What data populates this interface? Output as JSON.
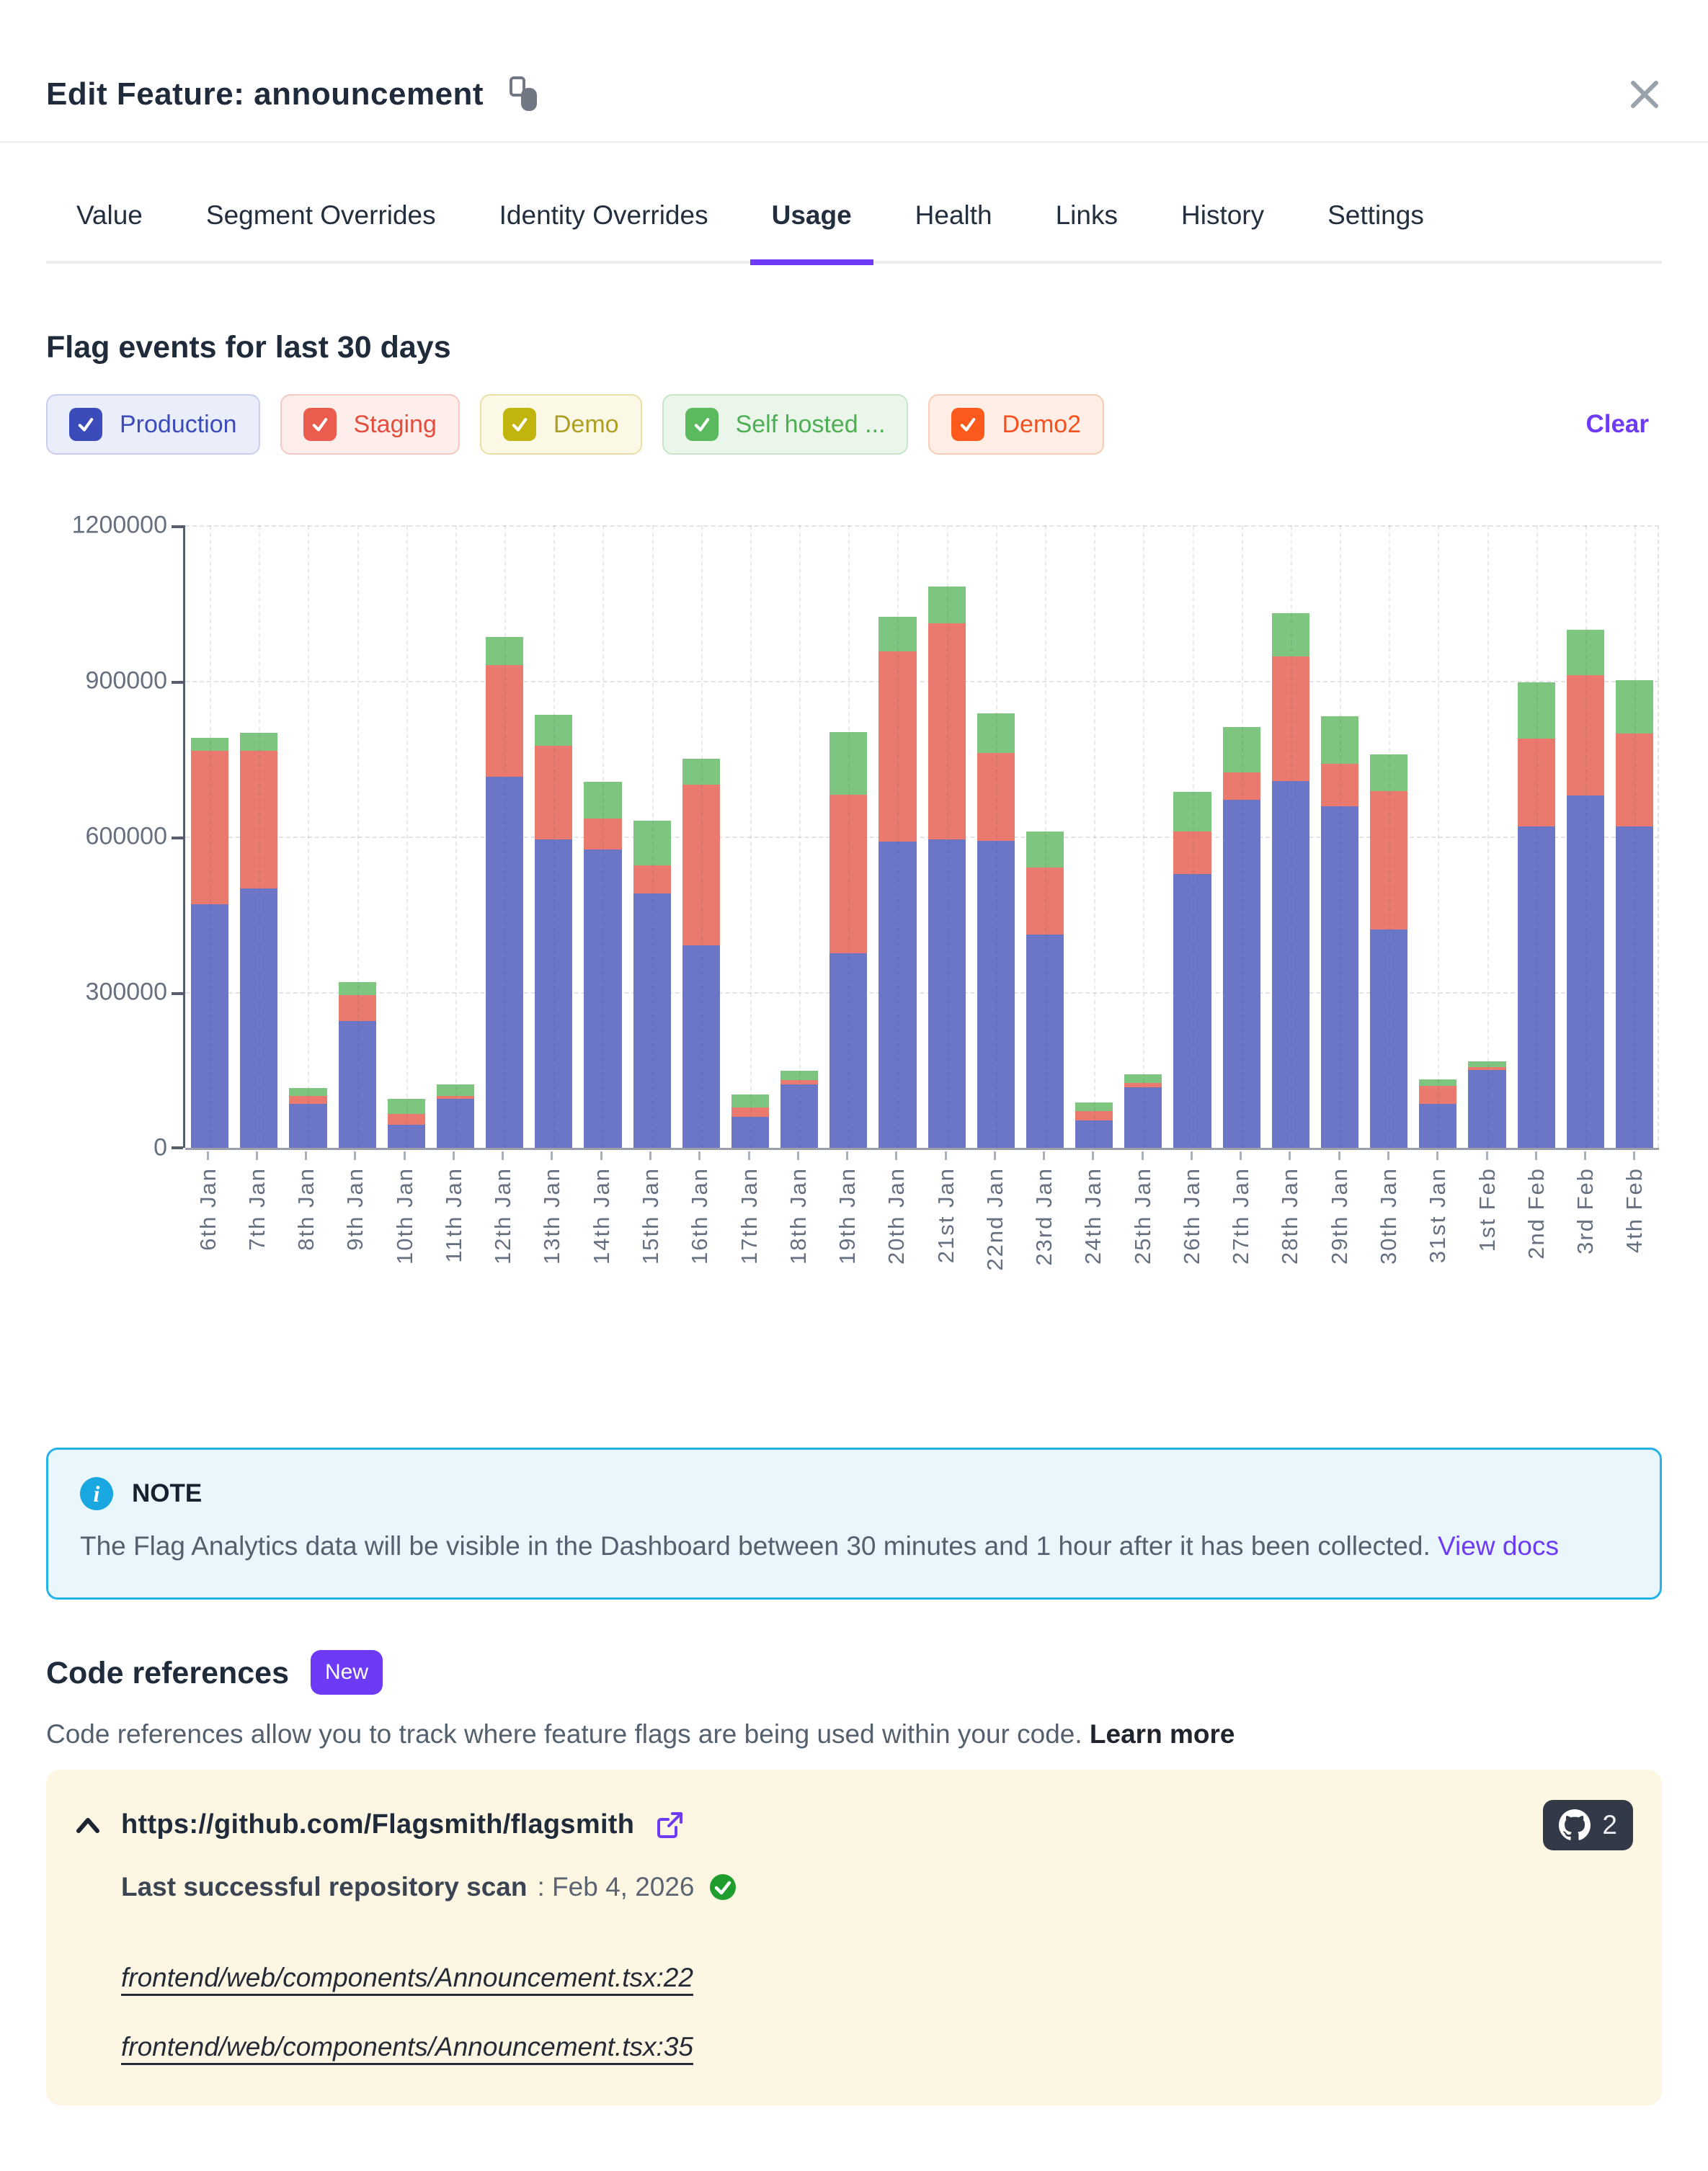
{
  "modal": {
    "title": "Edit Feature: announcement"
  },
  "tabs": [
    {
      "label": "Value",
      "active": false
    },
    {
      "label": "Segment Overrides",
      "active": false
    },
    {
      "label": "Identity Overrides",
      "active": false
    },
    {
      "label": "Usage",
      "active": true
    },
    {
      "label": "Health",
      "active": false
    },
    {
      "label": "Links",
      "active": false
    },
    {
      "label": "History",
      "active": false
    },
    {
      "label": "Settings",
      "active": false
    }
  ],
  "usage": {
    "heading": "Flag events for last 30 days",
    "clear_label": "Clear",
    "environments": [
      {
        "label": "Production",
        "checked": true,
        "box_color": "#3b4cba",
        "text_color": "#3b4cba",
        "bg": "#eaedfa",
        "border": "#c9cfee"
      },
      {
        "label": "Staging",
        "checked": true,
        "box_color": "#e95c4e",
        "text_color": "#e44d3d",
        "bg": "#fdeeec",
        "border": "#f5c8c2"
      },
      {
        "label": "Demo",
        "checked": true,
        "box_color": "#c2b40e",
        "text_color": "#ac9f23",
        "bg": "#fbf8e5",
        "border": "#e8dfa9"
      },
      {
        "label": "Self hosted ...",
        "checked": true,
        "box_color": "#5bb95e",
        "text_color": "#4daf51",
        "bg": "#ebf6eb",
        "border": "#c7e6c9"
      },
      {
        "label": "Demo2",
        "checked": true,
        "box_color": "#fb5a1c",
        "text_color": "#f4511e",
        "bg": "#feeee6",
        "border": "#f9ccb5"
      }
    ]
  },
  "chart_data": {
    "type": "bar",
    "stacked": true,
    "title": "Flag events for last 30 days",
    "xlabel": "",
    "ylabel": "",
    "ylim": [
      0,
      1200000
    ],
    "y_ticks": [
      "1200000",
      "900000",
      "600000",
      "300000",
      "0"
    ],
    "grid": true,
    "categories": [
      "6th Jan",
      "7th Jan",
      "8th Jan",
      "9th Jan",
      "10th Jan",
      "11th Jan",
      "12th Jan",
      "13th Jan",
      "14th Jan",
      "15th Jan",
      "16th Jan",
      "17th Jan",
      "18th Jan",
      "19th Jan",
      "20th Jan",
      "21st Jan",
      "22nd Jan",
      "23rd Jan",
      "24th Jan",
      "25th Jan",
      "26th Jan",
      "27th Jan",
      "28th Jan",
      "29th Jan",
      "30th Jan",
      "31st Jan",
      "1st Feb",
      "2nd Feb",
      "3rd Feb",
      "4th Feb"
    ],
    "series": [
      {
        "name": "Production",
        "color": "#6b76c6",
        "values": [
          470000,
          500000,
          85000,
          245000,
          45000,
          95000,
          715000,
          595000,
          575000,
          490000,
          390000,
          60000,
          122000,
          375000,
          590000,
          594000,
          591000,
          411000,
          53000,
          117000,
          528000,
          671000,
          707000,
          659000,
          421000,
          85000,
          150000,
          619000,
          679000,
          619000
        ]
      },
      {
        "name": "Staging",
        "color": "#eb7a6e",
        "values": [
          295000,
          265000,
          15000,
          50000,
          20000,
          5000,
          215000,
          180000,
          60000,
          55000,
          310000,
          18000,
          8000,
          305000,
          367000,
          417000,
          170000,
          130000,
          18000,
          8000,
          82000,
          52000,
          240000,
          81000,
          266000,
          35000,
          5000,
          170000,
          232000,
          180000
        ]
      },
      {
        "name": "Self hosted ...",
        "color": "#7ec67f",
        "values": [
          25000,
          35000,
          15000,
          25000,
          30000,
          22000,
          55000,
          60000,
          70000,
          85000,
          50000,
          25000,
          18000,
          122000,
          67000,
          71000,
          77000,
          69000,
          17000,
          17000,
          76000,
          88000,
          84000,
          92000,
          72000,
          12000,
          12000,
          108000,
          88000,
          102000
        ]
      }
    ],
    "legend_entries": [
      "Production",
      "Staging",
      "Demo",
      "Self hosted ...",
      "Demo2"
    ],
    "legend_position": "top"
  },
  "note": {
    "title": "NOTE",
    "text": "The Flag Analytics data will be visible in the Dashboard between 30 minutes and 1 hour after it has been collected. ",
    "link_label": "View docs"
  },
  "code_references": {
    "heading": "Code references",
    "badge_label": "New",
    "description": "Code references allow you to track where feature flags are being used within your code. ",
    "learn_more_label": "Learn more",
    "repo": {
      "url": "https://github.com/Flagsmith/flagsmith",
      "count": "2",
      "scan_label": "Last successful repository scan",
      "scan_date": ": Feb 4, 2026"
    },
    "files": [
      "frontend/web/components/Announcement.tsx:22",
      "frontend/web/components/Announcement.tsx:35"
    ]
  },
  "colors": {
    "accent_purple": "#6d3bf5",
    "note_border": "#25b2e8",
    "note_bg": "#e9f7fd",
    "panel_bg": "#fdf6e3",
    "github_badge_bg": "#333a47",
    "check_green": "#1f9e2e"
  }
}
